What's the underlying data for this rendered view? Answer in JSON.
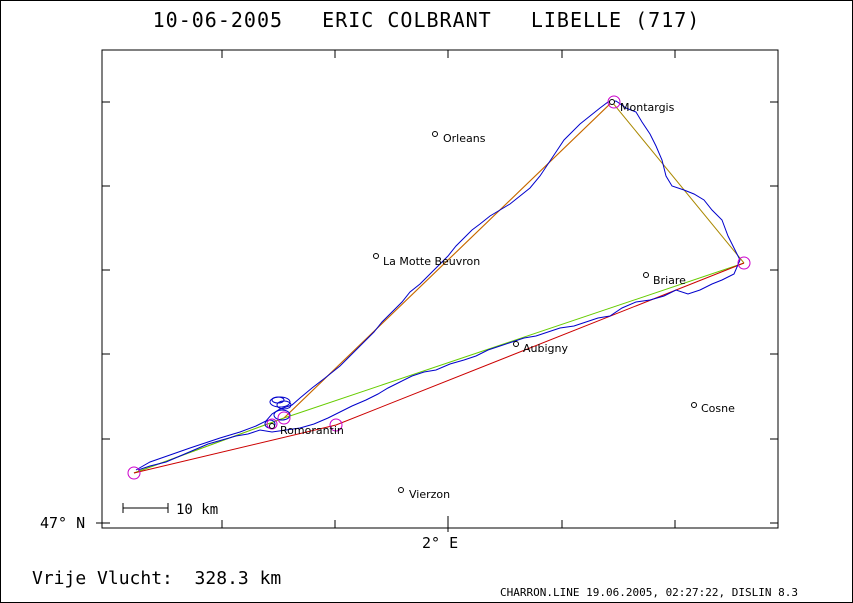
{
  "title": "10-06-2005   ERIC COLBRANT   LIBELLE (717)",
  "footer": {
    "flight_label": "Vrije Vlucht:  328.3 km",
    "credits": "CHARRON.LINE 19.06.2005, 02:27:22, DISLIN 8.3"
  },
  "axes": {
    "lat_label": "47° N",
    "lon_label": "2° E"
  },
  "scale_bar": {
    "label": "10 km"
  },
  "colors": {
    "track": "#0000cc",
    "optimized_path": "#cc0000",
    "task_path": "#aa8800",
    "triangle_side": "#66cc00",
    "turnpoint": "#cc00cc"
  },
  "map_data": {
    "cities": [
      {
        "name": "Montargis"
      },
      {
        "name": "Orleans"
      },
      {
        "name": "La Motte Beuvron"
      },
      {
        "name": "Briare"
      },
      {
        "name": "Aubigny"
      },
      {
        "name": "Romorantin"
      },
      {
        "name": "Cosne"
      },
      {
        "name": "Vierzon"
      }
    ]
  }
}
